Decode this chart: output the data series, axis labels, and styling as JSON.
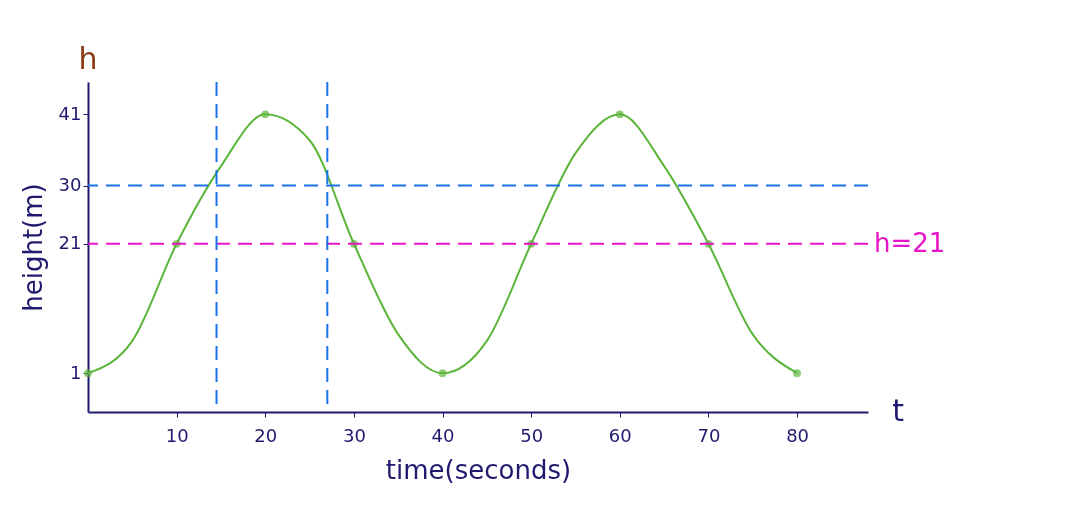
{
  "chart_data": {
    "type": "line",
    "xlabel": "time(seconds)",
    "ylabel": "height(m)",
    "xlim": [
      0,
      88
    ],
    "ylim": [
      -5,
      46
    ],
    "xticks": [
      10,
      20,
      30,
      40,
      50,
      60,
      70,
      80
    ],
    "yticks": [
      1,
      21,
      30,
      41
    ],
    "series": [
      {
        "type": "line",
        "color": "#5cb53b",
        "x": [
          0,
          5,
          10,
          15,
          20,
          25,
          30,
          35,
          40,
          45,
          50,
          55,
          60,
          65,
          70,
          75,
          80
        ],
        "values": [
          1,
          6,
          21,
          33,
          41,
          37,
          21,
          7,
          1,
          6,
          21,
          35,
          41,
          33,
          21,
          7,
          1
        ]
      },
      {
        "type": "scatter",
        "marker": "circle",
        "color": "#5cb53b",
        "x": [
          0,
          10,
          20,
          30,
          40,
          50,
          60,
          70,
          80
        ],
        "values": [
          1,
          21,
          41,
          21,
          1,
          21,
          41,
          21,
          1
        ]
      }
    ],
    "ref_lines": [
      {
        "axis": "y",
        "value": 21,
        "label": "h=21",
        "color": "#e815c8",
        "line_style": "dashed"
      },
      {
        "axis": "y",
        "value": 30,
        "label": null,
        "color": "#1a73e8",
        "line_style": "dashed"
      },
      {
        "axis": "x",
        "value": 14.5,
        "label": null,
        "color": "#1a73e8",
        "line_style": "dashed"
      },
      {
        "axis": "x",
        "value": 27,
        "label": null,
        "color": "#1a73e8",
        "line_style": "dashed"
      }
    ],
    "annotations": [
      "h",
      "t"
    ],
    "grid": false
  }
}
